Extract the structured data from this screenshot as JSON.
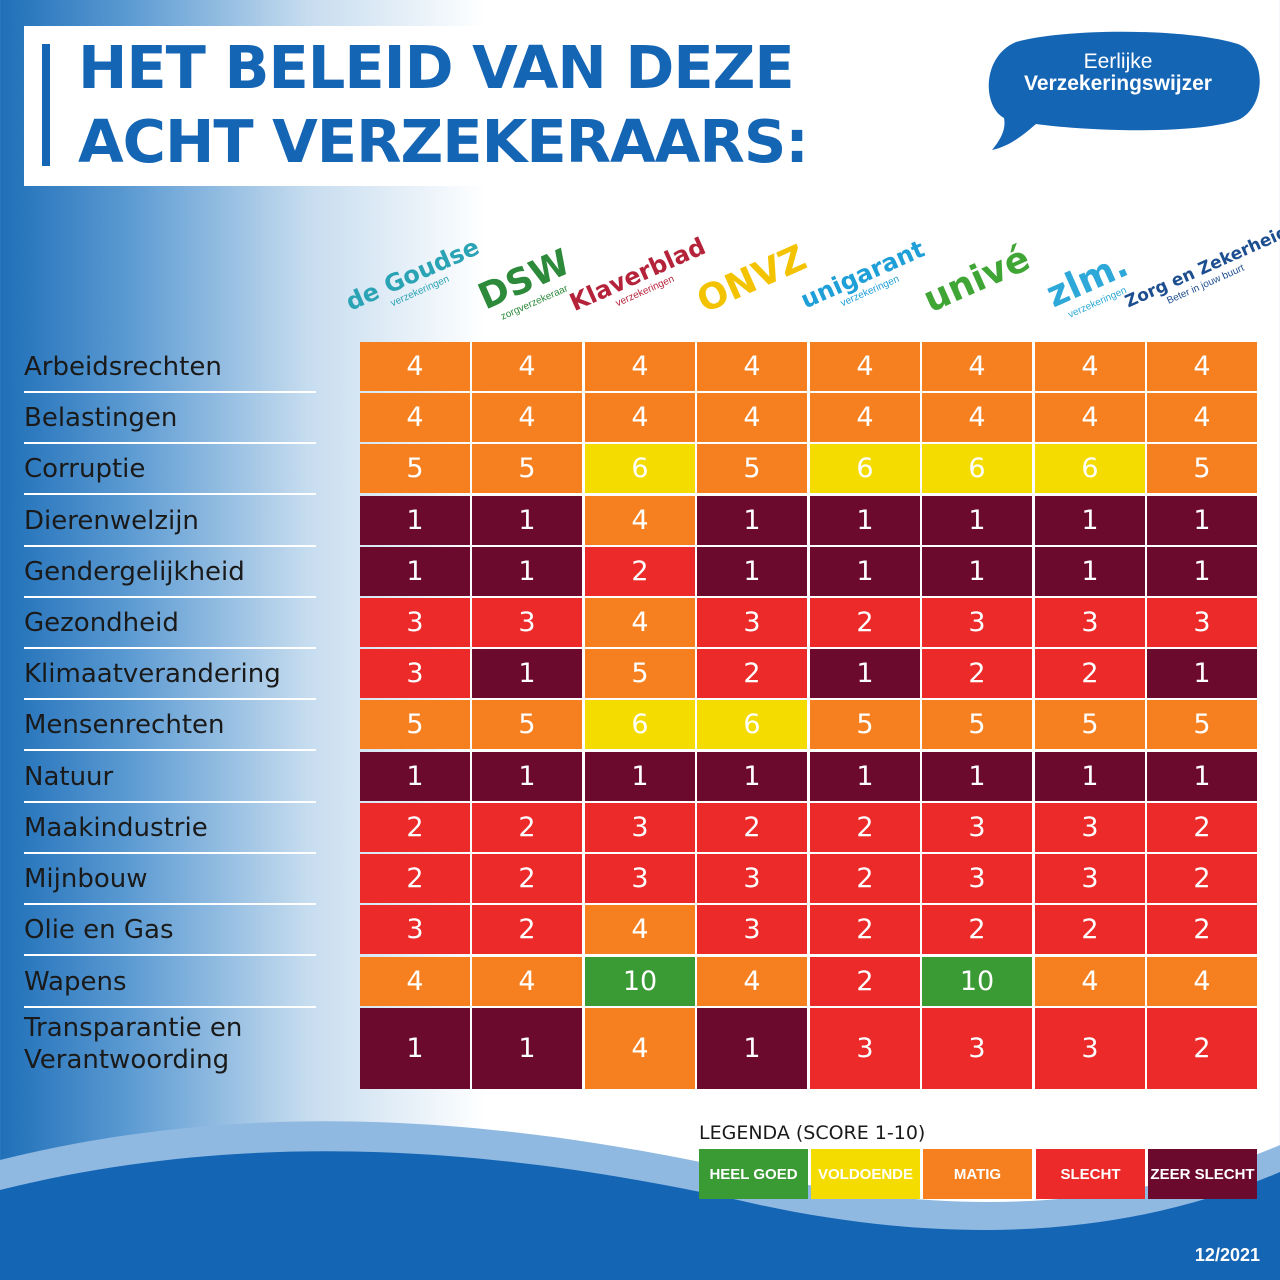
{
  "title": {
    "line1": "HET BELEID VAN DEZE",
    "line2": "ACHT VERZEKERAARS:"
  },
  "brand": {
    "line1": "Eerlijke",
    "line2": "Verzekeringswijzer",
    "color": "#1565b5"
  },
  "date": "12/2021",
  "colors": {
    "heel_goed": "#3a9b35",
    "voldoende": "#f5dc00",
    "matig": "#f6801f",
    "slecht": "#ec2a2a",
    "zeer_slecht": "#6c0a2e"
  },
  "insurers": [
    {
      "main": "de Goudse",
      "sub": "verzekeringen",
      "color": "#2aa3b5"
    },
    {
      "main": "DSW",
      "sub": "zorgverzekeraar",
      "color": "#2c8a3a"
    },
    {
      "main": "Klaverblad",
      "sub": "verzekeringen",
      "color": "#b5233b"
    },
    {
      "main": "ONVZ",
      "sub": "",
      "color": "#f3c300"
    },
    {
      "main": "unigarant",
      "sub": "verzekeringen",
      "color": "#1f9fd8"
    },
    {
      "main": "univé",
      "sub": "",
      "color": "#3fa535"
    },
    {
      "main": "zlm.",
      "sub": "verzekeringen",
      "color": "#2da8d8"
    },
    {
      "main": "Zorg en Zekerheid",
      "sub": "Beter in jouw buurt",
      "color": "#1d4e8f"
    }
  ],
  "chart_data": {
    "type": "table",
    "title": "HET BELEID VAN DEZE ACHT VERZEKERAARS:",
    "columns": [
      "de Goudse",
      "DSW",
      "Klaverblad",
      "ONVZ",
      "unigarant",
      "univé",
      "zlm.",
      "Zorg en Zekerheid"
    ],
    "rows": [
      {
        "label": "Arbeidsrechten",
        "values": [
          4,
          4,
          4,
          4,
          4,
          4,
          4,
          4
        ]
      },
      {
        "label": "Belastingen",
        "values": [
          4,
          4,
          4,
          4,
          4,
          4,
          4,
          4
        ]
      },
      {
        "label": "Corruptie",
        "values": [
          5,
          5,
          6,
          5,
          6,
          6,
          6,
          5
        ]
      },
      {
        "label": "Dierenwelzijn",
        "values": [
          1,
          1,
          4,
          1,
          1,
          1,
          1,
          1
        ]
      },
      {
        "label": "Gendergelijkheid",
        "values": [
          1,
          1,
          2,
          1,
          1,
          1,
          1,
          1
        ]
      },
      {
        "label": "Gezondheid",
        "values": [
          3,
          3,
          4,
          3,
          2,
          3,
          3,
          3
        ]
      },
      {
        "label": "Klimaatverandering",
        "values": [
          3,
          1,
          5,
          2,
          1,
          2,
          2,
          1
        ]
      },
      {
        "label": "Mensenrechten",
        "values": [
          5,
          5,
          6,
          6,
          5,
          5,
          5,
          5
        ]
      },
      {
        "label": "Natuur",
        "values": [
          1,
          1,
          1,
          1,
          1,
          1,
          1,
          1
        ]
      },
      {
        "label": "Maakindustrie",
        "values": [
          2,
          2,
          3,
          2,
          2,
          3,
          3,
          2
        ]
      },
      {
        "label": "Mijnbouw",
        "values": [
          2,
          2,
          3,
          3,
          2,
          3,
          3,
          2
        ]
      },
      {
        "label": "Olie en Gas",
        "values": [
          3,
          2,
          4,
          3,
          2,
          2,
          2,
          2
        ]
      },
      {
        "label": "Wapens",
        "values": [
          4,
          4,
          10,
          4,
          2,
          10,
          4,
          4
        ]
      },
      {
        "label": "Transparantie en\nVerantwoording",
        "values": [
          1,
          1,
          4,
          1,
          3,
          3,
          3,
          2
        ]
      }
    ],
    "legend": {
      "title": "LEGENDA (SCORE 1-10)",
      "items": [
        {
          "label": "HEEL GOED",
          "color": "#3a9b35"
        },
        {
          "label": "VOLDOENDE",
          "color": "#f5dc00"
        },
        {
          "label": "MATIG",
          "color": "#f6801f"
        },
        {
          "label": "SLECHT",
          "color": "#ec2a2a"
        },
        {
          "label": "ZEER SLECHT",
          "color": "#6c0a2e"
        }
      ]
    }
  }
}
